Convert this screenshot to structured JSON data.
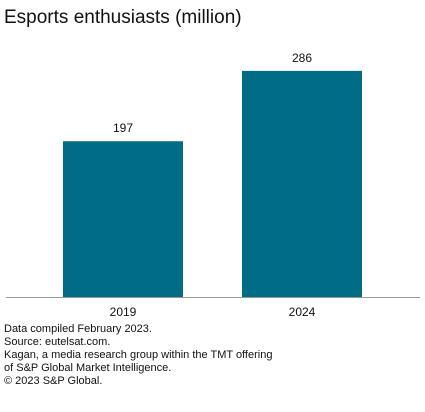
{
  "chart_data": {
    "type": "bar",
    "title": "Esports enthusiasts (million)",
    "categories": [
      "2019",
      "2024"
    ],
    "values": [
      197,
      286
    ],
    "data_labels": [
      "197",
      "286"
    ],
    "xlabel": "",
    "ylabel": "",
    "ylim": [
      0,
      320
    ],
    "grid": false,
    "legend": "none",
    "colors": {
      "bar": "#006c85",
      "axis": "#999999",
      "text": "#111111"
    }
  },
  "footnotes": [
    "Data compiled February 2023.",
    "Source: eutelsat.com.",
    "Kagan, a media research group within the TMT offering",
    "of S&P Global Market Intelligence.",
    "© 2023 S&P Global."
  ]
}
